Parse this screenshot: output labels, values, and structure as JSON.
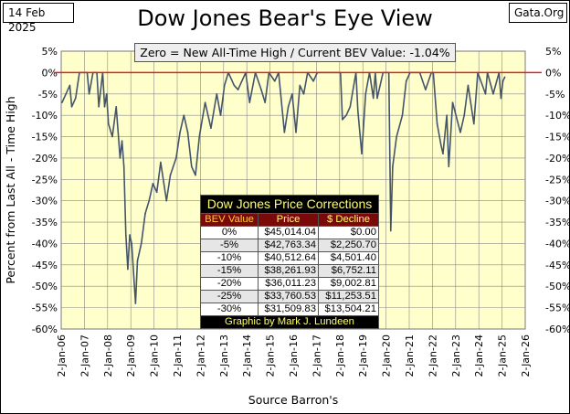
{
  "header": {
    "date": "14 Feb 2025",
    "site": "Gata.Org",
    "title": "Dow Jones Bear's Eye View",
    "subtitle": "Zero = New All-Time High / Current BEV Value:  -1.04%"
  },
  "table": {
    "title": "Dow Jones Price Corrections",
    "columns": [
      "BEV Value",
      "Price",
      "$ Decline"
    ],
    "rows": [
      [
        "0%",
        "$45,014.04",
        "$0.00"
      ],
      [
        "-5%",
        "$42,763.34",
        "$2,250.70"
      ],
      [
        "-10%",
        "$40,512.64",
        "$4,501.40"
      ],
      [
        "-15%",
        "$38,261.93",
        "$6,752.11"
      ],
      [
        "-20%",
        "$36,011.23",
        "$9,002.81"
      ],
      [
        "-25%",
        "$33,760.53",
        "$11,253.51"
      ],
      [
        "-30%",
        "$31,509.83",
        "$13,504.21"
      ]
    ],
    "footer": "Graphic by Mark J. Lundeen"
  },
  "chart_data": {
    "type": "line",
    "title": "Dow Jones Bear's Eye View",
    "ylabel": "Percent from Last All - Time High",
    "xlabel": "Source Barron's",
    "ylim": [
      -60,
      5
    ],
    "xlim": [
      "2006-01-02",
      "2026-01-02"
    ],
    "yticks": [
      "5%",
      "0%",
      "-5%",
      "-10%",
      "-15%",
      "-20%",
      "-25%",
      "-30%",
      "-35%",
      "-40%",
      "-45%",
      "-50%",
      "-55%",
      "-60%"
    ],
    "xticks": [
      "2-Jan-06",
      "2-Jan-07",
      "2-Jan-08",
      "2-Jan-09",
      "2-Jan-10",
      "2-Jan-11",
      "2-Jan-12",
      "2-Jan-13",
      "2-Jan-14",
      "2-Jan-15",
      "2-Jan-16",
      "2-Jan-17",
      "2-Jan-18",
      "2-Jan-19",
      "2-Jan-20",
      "2-Jan-21",
      "2-Jan-22",
      "2-Jan-23",
      "2-Jan-24",
      "2-Jan-25",
      "2-Jan-26"
    ],
    "grid": true,
    "reference_line": {
      "y": 0,
      "color": "#e02020"
    },
    "colors": {
      "series": "#44546a",
      "plot_bg": "#ffffcc"
    },
    "series": [
      {
        "x": [
          "2006-01",
          "2006-03",
          "2006-05",
          "2006-06",
          "2006-08",
          "2006-10",
          "2006-12",
          "2007-02",
          "2007-03",
          "2007-05",
          "2007-07",
          "2007-08",
          "2007-10",
          "2007-11",
          "2007-12",
          "2008-01",
          "2008-03",
          "2008-05",
          "2008-07",
          "2008-08",
          "2008-09",
          "2008-10",
          "2008-11",
          "2008-12",
          "2009-01",
          "2009-03",
          "2009-04",
          "2009-06",
          "2009-08",
          "2009-10",
          "2009-12",
          "2010-02",
          "2010-04",
          "2010-07",
          "2010-09",
          "2010-12",
          "2011-02",
          "2011-04",
          "2011-06",
          "2011-08",
          "2011-10",
          "2011-12",
          "2012-03",
          "2012-06",
          "2012-09",
          "2012-11",
          "2013-01",
          "2013-03",
          "2013-06",
          "2013-08",
          "2013-12",
          "2014-02",
          "2014-05",
          "2014-08",
          "2014-10",
          "2014-12",
          "2015-03",
          "2015-05",
          "2015-08",
          "2015-10",
          "2015-12",
          "2016-02",
          "2016-04",
          "2016-06",
          "2016-08",
          "2016-11",
          "2017-01",
          "2017-12",
          "2018-01",
          "2018-02",
          "2018-04",
          "2018-06",
          "2018-09",
          "2018-10",
          "2018-12",
          "2019-02",
          "2019-04",
          "2019-06",
          "2019-07",
          "2019-08",
          "2019-11",
          "2020-02",
          "2020-03",
          "2020-04",
          "2020-06",
          "2020-09",
          "2020-11",
          "2021-01",
          "2021-06",
          "2021-09",
          "2021-12",
          "2022-01",
          "2022-03",
          "2022-05",
          "2022-06",
          "2022-08",
          "2022-09",
          "2022-11",
          "2023-03",
          "2023-05",
          "2023-07",
          "2023-10",
          "2023-12",
          "2024-04",
          "2024-05",
          "2024-08",
          "2024-11",
          "2024-12",
          "2025-01",
          "2025-02"
        ],
        "y": [
          -7,
          -5,
          -3,
          -8,
          -6,
          0,
          0,
          0,
          -5,
          0,
          0,
          -8,
          0,
          -8,
          -5,
          -12,
          -15,
          -8,
          -20,
          -16,
          -22,
          -38,
          -46,
          -38,
          -40,
          -54,
          -44,
          -40,
          -33,
          -30,
          -26,
          -28,
          -21,
          -30,
          -24,
          -20,
          -14,
          -10,
          -14,
          -22,
          -24,
          -15,
          -7,
          -13,
          -5,
          -10,
          -3,
          0,
          -3,
          -4,
          0,
          -7,
          0,
          -4,
          -7,
          0,
          -2,
          0,
          -14,
          -8,
          -5,
          -14,
          -3,
          -5,
          0,
          -2,
          0,
          0,
          0,
          -11,
          -10,
          -8,
          0,
          -9,
          -19,
          -5,
          0,
          -6,
          0,
          -6,
          0,
          0,
          -37,
          -22,
          -15,
          -10,
          -2,
          0,
          0,
          -4,
          0,
          0,
          -12,
          -17,
          -19,
          -10,
          -22,
          -7,
          -14,
          -10,
          -3,
          -12,
          0,
          -5,
          0,
          -5,
          0,
          -6,
          -2,
          -1.04
        ]
      }
    ]
  }
}
